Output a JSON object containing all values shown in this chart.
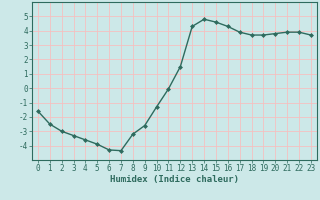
{
  "x": [
    0,
    1,
    2,
    3,
    4,
    5,
    6,
    7,
    8,
    9,
    10,
    11,
    12,
    13,
    14,
    15,
    16,
    17,
    18,
    19,
    20,
    21,
    22,
    23
  ],
  "y": [
    -1.6,
    -2.5,
    -3.0,
    -3.3,
    -3.6,
    -3.9,
    -4.3,
    -4.35,
    -3.2,
    -2.6,
    -1.3,
    -0.05,
    1.5,
    4.3,
    4.8,
    4.6,
    4.3,
    3.9,
    3.7,
    3.7,
    3.8,
    3.9,
    3.9,
    3.7
  ],
  "line_color": "#2e6b5e",
  "marker": "D",
  "marker_size": 2.0,
  "linewidth": 1.0,
  "background_color": "#cce8e8",
  "grid_color": "#f5c0c0",
  "xlabel": "Humidex (Indice chaleur)",
  "xlabel_fontsize": 6.5,
  "tick_fontsize": 5.5,
  "xlim": [
    -0.5,
    23.5
  ],
  "ylim": [
    -5,
    6
  ],
  "yticks": [
    -4,
    -3,
    -2,
    -1,
    0,
    1,
    2,
    3,
    4,
    5
  ],
  "xticks": [
    0,
    1,
    2,
    3,
    4,
    5,
    6,
    7,
    8,
    9,
    10,
    11,
    12,
    13,
    14,
    15,
    16,
    17,
    18,
    19,
    20,
    21,
    22,
    23
  ]
}
